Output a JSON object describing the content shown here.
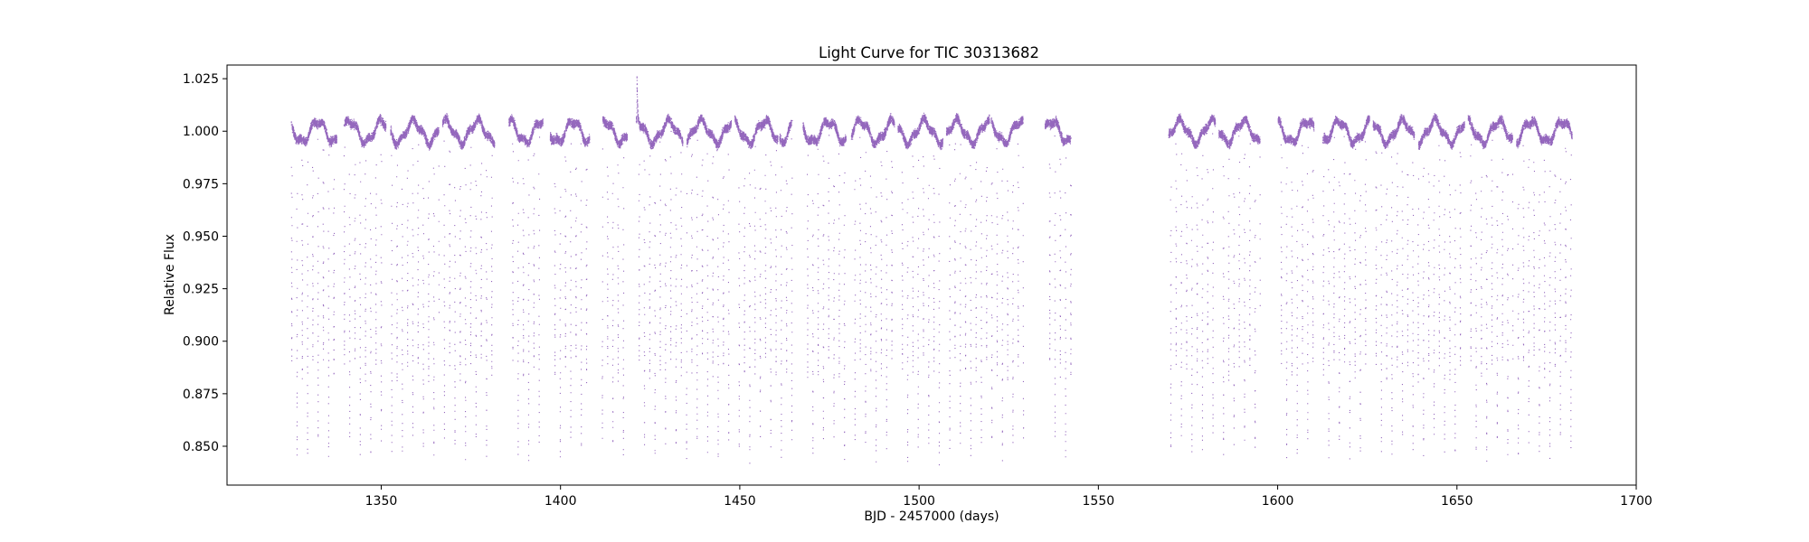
{
  "chart_data": {
    "type": "scatter",
    "title": "Light Curve for TIC 30313682",
    "xlabel": "BJD - 2457000 (days)",
    "ylabel": "Relative Flux",
    "xlim": [
      1307,
      1700
    ],
    "ylim": [
      0.8315,
      1.0315
    ],
    "xticks": [
      1350,
      1400,
      1450,
      1500,
      1550,
      1600,
      1650,
      1700
    ],
    "yticks": [
      0.85,
      0.875,
      0.9,
      0.925,
      0.95,
      0.975,
      1.0,
      1.025
    ],
    "grid": false,
    "legend": "none",
    "color": "#9467bd",
    "time_segments": [
      [
        1324.8,
        1337.5
      ],
      [
        1339.5,
        1351.2
      ],
      [
        1352.5,
        1366.0
      ],
      [
        1367.0,
        1381.5
      ],
      [
        1385.5,
        1395.0
      ],
      [
        1397.0,
        1408.0
      ],
      [
        1411.5,
        1418.5
      ],
      [
        1421.0,
        1434.0
      ],
      [
        1435.0,
        1447.5
      ],
      [
        1448.5,
        1460.5
      ],
      [
        1461.0,
        1464.5
      ],
      [
        1467.5,
        1479.5
      ],
      [
        1481.0,
        1493.0
      ],
      [
        1494.0,
        1506.5
      ],
      [
        1507.5,
        1519.5
      ],
      [
        1520.0,
        1529.0
      ],
      [
        1535.0,
        1542.3
      ],
      [
        1569.5,
        1582.5
      ],
      [
        1583.5,
        1595.0
      ],
      [
        1600.0,
        1610.0
      ],
      [
        1612.5,
        1625.5
      ],
      [
        1626.5,
        1638.0
      ],
      [
        1639.0,
        1652.0
      ],
      [
        1653.0,
        1665.5
      ],
      [
        1666.5,
        1682.0
      ]
    ],
    "eclipse_period_days": 2.936,
    "primary_eclipse_ref_bjd": 1326.4,
    "primary_eclipse_depth_flux": 0.848,
    "secondary_eclipse_depth_flux": 0.886,
    "out_of_eclipse_flux": 1.0,
    "spot_modulation_amplitude": 0.005,
    "spot_modulation_period_days": 8.9,
    "flare_peak": {
      "x": 1421.2,
      "y": 1.021
    }
  }
}
